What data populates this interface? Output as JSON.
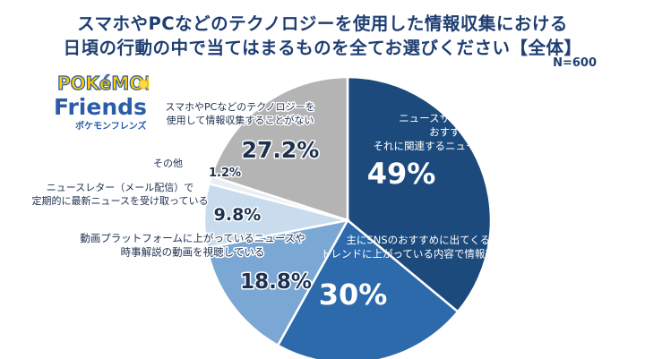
{
  "header": {
    "title_line1": "スマホやPCなどのテクノロジーを使用した情報収集における",
    "title_line2": "日頃の行動の中で当てはまるものを全てお選びください【全体】",
    "sample_size": "N=600"
  },
  "logo": {
    "top_word": "POKéMON",
    "main_word": "Friends",
    "sub_word": "ポケモンフレンズ"
  },
  "chart_data": {
    "type": "pie",
    "title": "スマホやPCなどのテクノロジーを使用した情報収集における日頃の行動の中で当てはまるものを全てお選びください【全体】",
    "slices": [
      {
        "label_lines": [
          "ニュースサイトやニュースアプリなどで",
          "おすすめに出てきたものや",
          "それに関連するニュースを読んで情報収集している"
        ],
        "value": 49,
        "value_label": "49%",
        "color": "#1d4a7c"
      },
      {
        "label_lines": [
          "主にSNSのおすすめに出てくる投稿や",
          "トレンドに上がっている内容で情報収集している"
        ],
        "value": 30,
        "value_label": "30%",
        "color": "#2d6aab"
      },
      {
        "label_lines": [
          "動画プラットフォームに上がっているニュースや",
          "時事解説の動画を視聴している"
        ],
        "value": 18.8,
        "value_label": "18.8%",
        "color": "#7ba7d4"
      },
      {
        "label_lines": [
          "ニュースレター（メール配信）で",
          "定期的に最新ニュースを受け取っている"
        ],
        "value": 9.8,
        "value_label": "9.8%",
        "color": "#c9dcee"
      },
      {
        "label_lines": [
          "その他"
        ],
        "value": 1.2,
        "value_label": "1.2%",
        "color": "#e9eef4"
      },
      {
        "label_lines": [
          "スマホやPCなどのテクノロジーを",
          "使用して情報収集することがない"
        ],
        "value": 27.2,
        "value_label": "27.2%",
        "color": "#b4b4b4"
      }
    ],
    "start_angle_deg": 0,
    "direction": "clockwise",
    "note": "multiple-answer question; percentages sum above 100%"
  }
}
